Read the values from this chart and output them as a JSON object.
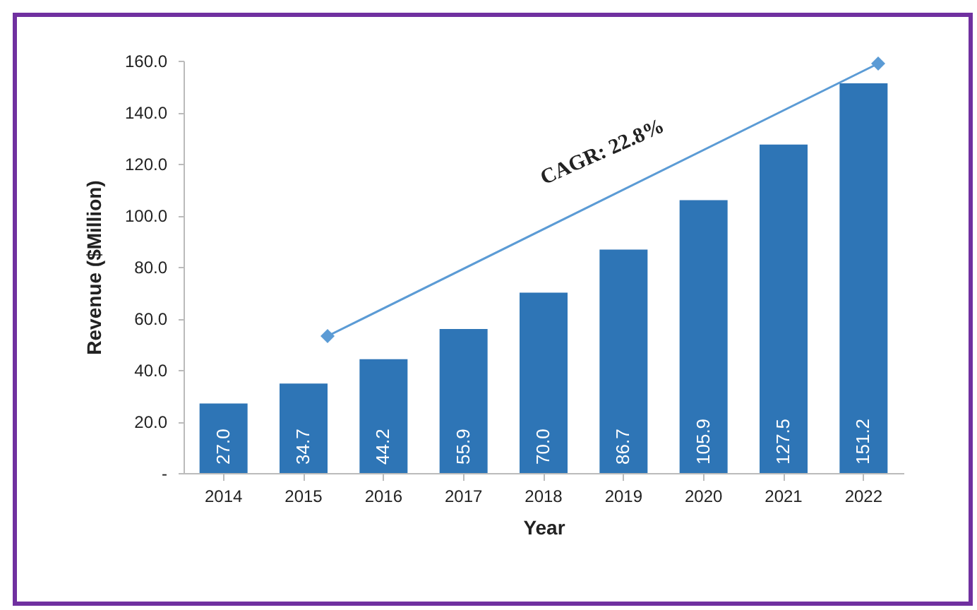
{
  "chart_data": {
    "type": "bar",
    "xlabel": "Year",
    "ylabel": "Revenue ($Million)",
    "categories": [
      "2014",
      "2015",
      "2016",
      "2017",
      "2018",
      "2019",
      "2020",
      "2021",
      "2022"
    ],
    "values": [
      27.0,
      34.7,
      44.2,
      55.9,
      70.0,
      86.7,
      105.9,
      127.5,
      151.2
    ],
    "color": "#2e75b6",
    "grid": false,
    "value_labels": [
      "27.0",
      "34.7",
      "44.2",
      "55.9",
      "70.0",
      "86.7",
      "105.9",
      "127.5",
      "151.2"
    ],
    "ylim": [
      0,
      160
    ],
    "yticks": [
      {
        "value": 0,
        "label": "-"
      },
      {
        "value": 20,
        "label": "20.0"
      },
      {
        "value": 40,
        "label": "40.0"
      },
      {
        "value": 60,
        "label": "60.0"
      },
      {
        "value": 80,
        "label": "80.0"
      },
      {
        "value": 100,
        "label": "100.0"
      },
      {
        "value": 120,
        "label": "120.0"
      },
      {
        "value": 140,
        "label": "140.0"
      },
      {
        "value": 160,
        "label": "160.0"
      }
    ],
    "annotations": [
      "CAGR: 22.8%"
    ]
  }
}
